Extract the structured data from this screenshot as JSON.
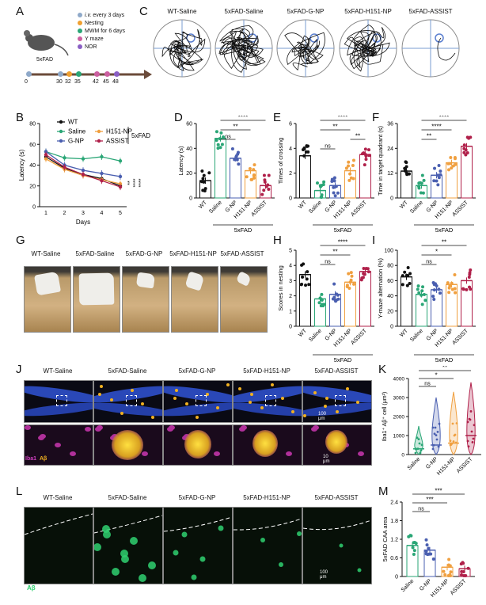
{
  "panels": {
    "A": {
      "letter": "A",
      "mouse_label": "5xFAD",
      "legend": [
        {
          "text_prefix": "",
          "text": "i.v.",
          "text_rest": "every 3 days",
          "color": "#8fa9c9"
        },
        {
          "text": "Nesting",
          "color": "#f0a030"
        },
        {
          "text": "MWM for 6 days",
          "color": "#2aa676"
        },
        {
          "text": "Y maze",
          "color": "#cc5fa0"
        },
        {
          "text": "NOR",
          "color": "#8a5fc4"
        }
      ],
      "timeline_ticks": [
        "0",
        "30",
        "32",
        "35",
        "42",
        "45",
        "48"
      ]
    },
    "C": {
      "letter": "C",
      "groups": [
        "WT-Saline",
        "5xFAD-Saline",
        "5xFAD-G-NP",
        "5xFAD-H151-NP",
        "5xFAD-ASSIST"
      ]
    },
    "G": {
      "letter": "G",
      "groups": [
        "WT-Saline",
        "5xFAD-Saline",
        "5xFAD-G-NP",
        "5xFAD-H151-NP",
        "5xFAD-ASSIST"
      ]
    },
    "J": {
      "letter": "J",
      "groups": [
        "WT-Saline",
        "5xFAD-Saline",
        "5xFAD-G-NP",
        "5xFAD-H151-NP",
        "5xFAD-ASSIST"
      ],
      "scale_top": "100 μm",
      "scale_bottom": "10 μm",
      "stain1": "Iba1",
      "stain2": "Aβ"
    },
    "L": {
      "letter": "L",
      "groups": [
        "WT-Saline",
        "5xFAD-Saline",
        "5xFAD-G-NP",
        "5xFAD-H151-NP",
        "5xFAD-ASSIST"
      ],
      "scale": "100 μm",
      "stain": "Aβ"
    }
  },
  "colors": {
    "wt": "#111111",
    "saline": "#2aa676",
    "gnp": "#4a5fb0",
    "h151": "#f0a040",
    "assist": "#b0204a"
  },
  "chart_data": [
    {
      "id": "B",
      "letter": "B",
      "type": "line",
      "x": [
        1,
        2,
        3,
        4,
        5
      ],
      "xlabel": "Days",
      "ylabel": "Latency (s)",
      "ylim": [
        0,
        80
      ],
      "yticks": [
        0,
        20,
        40,
        60,
        80
      ],
      "series": [
        {
          "name": "WT",
          "color": "#111111",
          "values": [
            48,
            37,
            31,
            27,
            20
          ]
        },
        {
          "name": "Saline",
          "color": "#2aa676",
          "values": [
            53,
            47,
            46,
            48,
            44
          ]
        },
        {
          "name": "G-NP",
          "color": "#4a5fb0",
          "values": [
            53,
            40,
            35,
            32,
            29
          ]
        },
        {
          "name": "H151-NP",
          "color": "#f0a040",
          "values": [
            46,
            36,
            30,
            26,
            22
          ]
        },
        {
          "name": "ASSIST",
          "color": "#b0204a",
          "values": [
            50,
            38,
            31,
            25,
            19
          ]
        }
      ],
      "group_label": "5xFAD",
      "sig": [
        "**",
        "****",
        "****"
      ]
    },
    {
      "id": "D",
      "letter": "D",
      "type": "bar",
      "ylabel": "Latency (s)",
      "ylim": [
        0,
        60
      ],
      "yticks": [
        0,
        20,
        40,
        60
      ],
      "categories": [
        "WT",
        "Saline",
        "G-NP",
        "H151-NP",
        "ASSIST"
      ],
      "values": [
        14,
        48,
        32,
        22,
        10
      ],
      "group_label": "5xFAD",
      "comparisons": [
        {
          "from": 1,
          "to": 4,
          "label": "****"
        },
        {
          "from": 1,
          "to": 3,
          "label": "**"
        },
        {
          "from": 1,
          "to": 2,
          "label": "ns"
        }
      ]
    },
    {
      "id": "E",
      "letter": "E",
      "type": "bar",
      "ylabel": "Times of crossing",
      "ylim": [
        0,
        6
      ],
      "yticks": [
        0,
        2,
        4,
        6
      ],
      "categories": [
        "WT",
        "Saline",
        "G-NP",
        "H151-NP",
        "ASSIST"
      ],
      "values": [
        3.4,
        0.6,
        1.0,
        2.2,
        3.5
      ],
      "group_label": "5xFAD",
      "comparisons": [
        {
          "from": 1,
          "to": 4,
          "label": "****"
        },
        {
          "from": 1,
          "to": 3,
          "label": "**"
        },
        {
          "from": 3,
          "to": 4,
          "label": "**"
        },
        {
          "from": 1,
          "to": 2,
          "label": "ns"
        }
      ]
    },
    {
      "id": "F",
      "letter": "F",
      "type": "bar",
      "ylabel": "Time in target quadrant (s)",
      "ylim": [
        0,
        36
      ],
      "yticks": [
        0,
        12,
        24,
        36
      ],
      "categories": [
        "WT",
        "Saline",
        "G-NP",
        "H151-NP",
        "ASSIST"
      ],
      "values": [
        13,
        6,
        11,
        17,
        25
      ],
      "group_label": "5xFAD",
      "comparisons": [
        {
          "from": 1,
          "to": 4,
          "label": "****"
        },
        {
          "from": 1,
          "to": 3,
          "label": "****"
        },
        {
          "from": 1,
          "to": 2,
          "label": "**"
        }
      ]
    },
    {
      "id": "H",
      "letter": "H",
      "type": "bar",
      "ylabel": "Scores in nesting",
      "ylim": [
        0,
        5
      ],
      "yticks": [
        0,
        1,
        2,
        3,
        4,
        5
      ],
      "categories": [
        "WT",
        "Saline",
        "G-NP",
        "H151-NP",
        "ASSIST"
      ],
      "values": [
        3.4,
        1.8,
        2.1,
        2.9,
        3.6
      ],
      "group_label": "5xFAD",
      "comparisons": [
        {
          "from": 1,
          "to": 4,
          "label": "****"
        },
        {
          "from": 1,
          "to": 3,
          "label": "**"
        },
        {
          "from": 1,
          "to": 2,
          "label": "ns"
        }
      ]
    },
    {
      "id": "I",
      "letter": "I",
      "type": "bar",
      "ylabel": "Y-maze alternation (%)",
      "ylim": [
        0,
        100
      ],
      "yticks": [
        0,
        20,
        40,
        60,
        80,
        100
      ],
      "categories": [
        "WT",
        "Saline",
        "G-NP",
        "H151-NP",
        "ASSIST"
      ],
      "values": [
        65,
        42,
        48,
        55,
        60
      ],
      "group_label": "5xFAD",
      "comparisons": [
        {
          "from": 1,
          "to": 4,
          "label": "**"
        },
        {
          "from": 1,
          "to": 3,
          "label": "*"
        },
        {
          "from": 1,
          "to": 2,
          "label": "ns"
        }
      ]
    },
    {
      "id": "K",
      "letter": "K",
      "type": "violin",
      "ylabel": "Iba1⁺ Aβ⁺ cell (μm²)",
      "ylim": [
        0,
        4000
      ],
      "yticks": [
        0,
        1000,
        2000,
        3000,
        4000
      ],
      "categories": [
        "Saline",
        "G-NP",
        "H151-NP",
        "ASSIST"
      ],
      "values": [
        300,
        500,
        600,
        1000
      ],
      "comparisons": [
        {
          "from": 0,
          "to": 3,
          "label": "**"
        },
        {
          "from": 0,
          "to": 2,
          "label": "*"
        },
        {
          "from": 0,
          "to": 1,
          "label": "ns"
        }
      ]
    },
    {
      "id": "M",
      "letter": "M",
      "type": "bar",
      "ylabel": "5xFAD CAA area",
      "ylim": [
        0,
        2.4
      ],
      "yticks": [
        0,
        0.6,
        1.2,
        1.8,
        2.4
      ],
      "categories": [
        "Saline",
        "G-NP",
        "H151-NP",
        "ASSIST"
      ],
      "values": [
        1.0,
        0.85,
        0.3,
        0.25
      ],
      "comparisons": [
        {
          "from": 0,
          "to": 3,
          "label": "***"
        },
        {
          "from": 0,
          "to": 2,
          "label": "***"
        },
        {
          "from": 0,
          "to": 1,
          "label": "ns"
        }
      ]
    }
  ]
}
